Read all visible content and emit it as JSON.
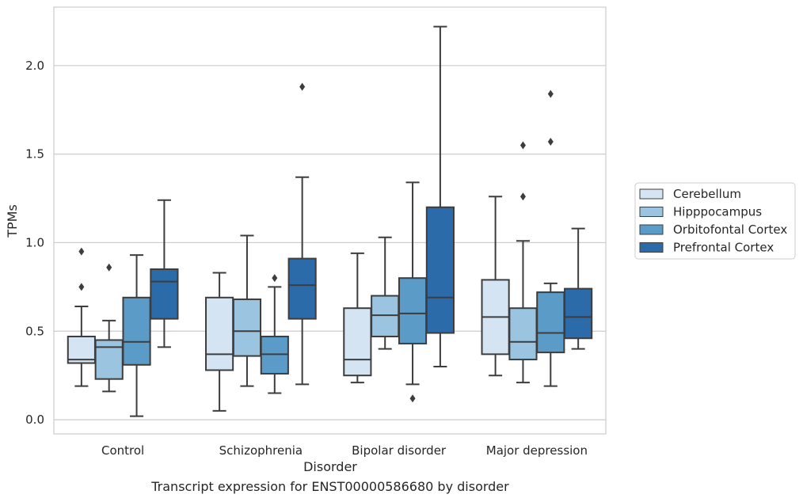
{
  "caption": "Transcript expression for ENST00000586680 by disorder",
  "chart_data": {
    "type": "box",
    "xlabel": "Disorder",
    "ylabel": "TPMs",
    "ylim": [
      -0.08,
      2.33
    ],
    "yticks": [
      0.0,
      0.5,
      1.0,
      1.5,
      2.0
    ],
    "ytick_labels": [
      "0.0",
      "0.5",
      "1.0",
      "1.5",
      "2.0"
    ],
    "grid": "horizontal",
    "legend_position": "right",
    "categories": [
      "Control",
      "Schizophrenia",
      "Bipolar disorder",
      "Major depression"
    ],
    "series": [
      {
        "name": "Cerebellum",
        "color": "#d4e4f3",
        "boxes": [
          {
            "whislo": 0.19,
            "q1": 0.32,
            "med": 0.34,
            "q3": 0.47,
            "whishi": 0.64,
            "fliers": [
              0.75,
              0.95
            ]
          },
          {
            "whislo": 0.05,
            "q1": 0.28,
            "med": 0.37,
            "q3": 0.69,
            "whishi": 0.83,
            "fliers": []
          },
          {
            "whislo": 0.21,
            "q1": 0.25,
            "med": 0.34,
            "q3": 0.63,
            "whishi": 0.94,
            "fliers": []
          },
          {
            "whislo": 0.25,
            "q1": 0.37,
            "med": 0.58,
            "q3": 0.79,
            "whishi": 1.26,
            "fliers": []
          }
        ]
      },
      {
        "name": "Hipppocampus",
        "color": "#9ac4e0",
        "boxes": [
          {
            "whislo": 0.16,
            "q1": 0.23,
            "med": 0.41,
            "q3": 0.45,
            "whishi": 0.56,
            "fliers": [
              0.86
            ]
          },
          {
            "whislo": 0.19,
            "q1": 0.36,
            "med": 0.5,
            "q3": 0.68,
            "whishi": 1.04,
            "fliers": []
          },
          {
            "whislo": 0.4,
            "q1": 0.47,
            "med": 0.59,
            "q3": 0.7,
            "whishi": 1.03,
            "fliers": []
          },
          {
            "whislo": 0.21,
            "q1": 0.34,
            "med": 0.44,
            "q3": 0.63,
            "whishi": 1.01,
            "fliers": [
              1.26,
              1.55
            ]
          }
        ]
      },
      {
        "name": "Orbitofontal Cortex",
        "color": "#5b9bc8",
        "boxes": [
          {
            "whislo": 0.02,
            "q1": 0.31,
            "med": 0.44,
            "q3": 0.69,
            "whishi": 0.93,
            "fliers": []
          },
          {
            "whislo": 0.15,
            "q1": 0.26,
            "med": 0.37,
            "q3": 0.47,
            "whishi": 0.75,
            "fliers": [
              0.8
            ]
          },
          {
            "whislo": 0.2,
            "q1": 0.43,
            "med": 0.6,
            "q3": 0.8,
            "whishi": 1.34,
            "fliers": [
              0.12
            ]
          },
          {
            "whislo": 0.19,
            "q1": 0.38,
            "med": 0.49,
            "q3": 0.72,
            "whishi": 0.77,
            "fliers": [
              1.57,
              1.84
            ]
          }
        ]
      },
      {
        "name": "Prefrontal Cortex",
        "color": "#2b6ba9",
        "boxes": [
          {
            "whislo": 0.41,
            "q1": 0.57,
            "med": 0.78,
            "q3": 0.85,
            "whishi": 1.24,
            "fliers": []
          },
          {
            "whislo": 0.2,
            "q1": 0.57,
            "med": 0.76,
            "q3": 0.91,
            "whishi": 1.37,
            "fliers": [
              1.88
            ]
          },
          {
            "whislo": 0.3,
            "q1": 0.49,
            "med": 0.69,
            "q3": 1.2,
            "whishi": 2.22,
            "fliers": []
          },
          {
            "whislo": 0.4,
            "q1": 0.46,
            "med": 0.58,
            "q3": 0.74,
            "whishi": 1.08,
            "fliers": []
          }
        ]
      }
    ]
  }
}
